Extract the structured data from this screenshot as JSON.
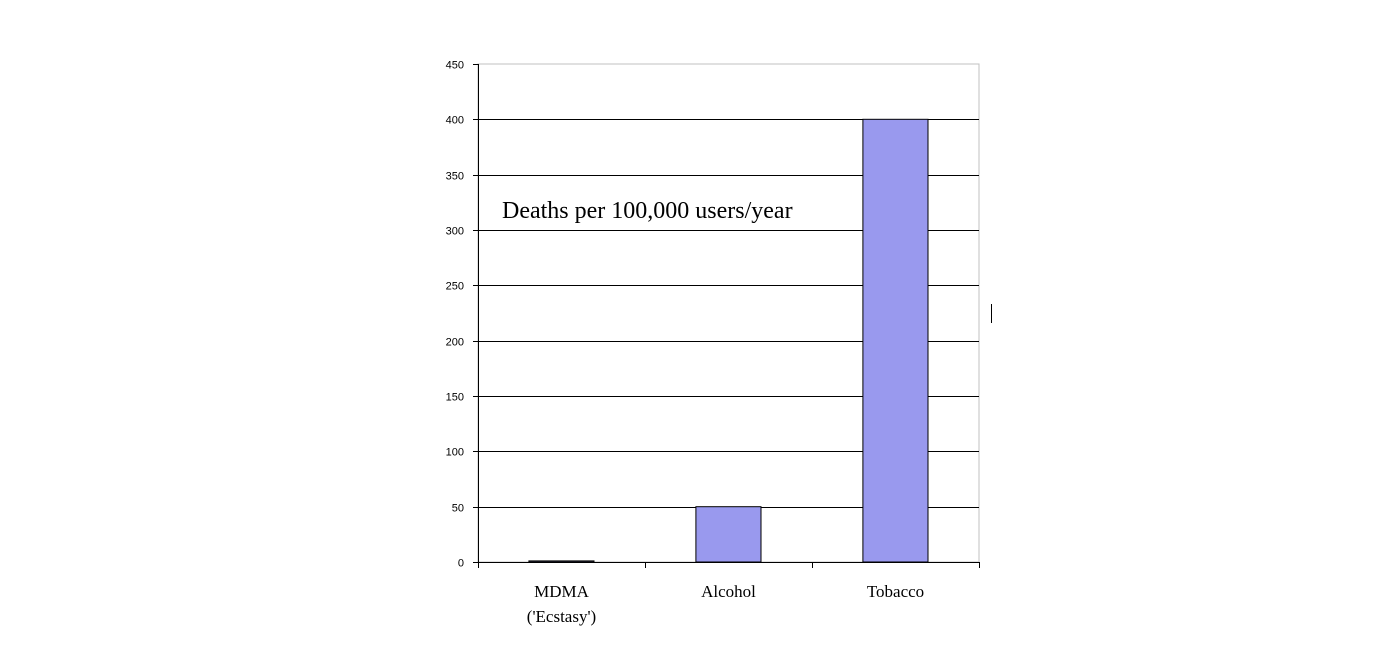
{
  "chart_data": {
    "type": "bar",
    "title": "",
    "xlabel": "",
    "ylabel": "",
    "annotation": "Deaths per 100,000 users/year",
    "categories": [
      [
        "MDMA",
        "('Ecstasy')"
      ],
      [
        "Alcohol"
      ],
      [
        "Tobacco"
      ]
    ],
    "values": [
      1,
      50,
      400
    ],
    "ylim": [
      0,
      450
    ],
    "yticks": [
      0,
      50,
      100,
      150,
      200,
      250,
      300,
      350,
      400,
      450
    ],
    "grid": true,
    "legend": false,
    "colors": {
      "bar_fill": "#9999ee",
      "bar_stroke": "#000000",
      "grid": "#000000",
      "plot_border": "#c0c0c0",
      "axis": "#000000"
    }
  }
}
